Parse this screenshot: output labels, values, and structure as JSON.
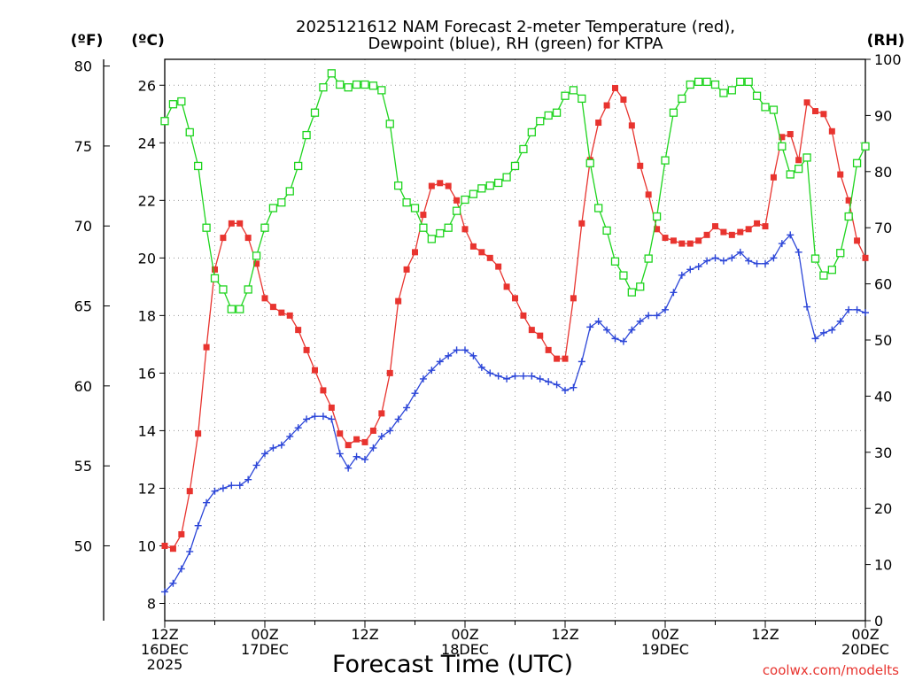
{
  "title_line1": "2025121612 NAM Forecast 2-meter Temperature (red),",
  "title_line2": "Dewpoint (blue), RH (green) for KTPA",
  "units": {
    "fahrenheit": "(ºF)",
    "celsius": "(ºC)",
    "rh": "(RH)"
  },
  "xlabel": "Forecast Time (UTC)",
  "credit": "coolwx.com/modelts",
  "colors": {
    "temperature": "#e8342f",
    "dewpoint": "#2c46d8",
    "rh": "#1ed41e"
  },
  "chart_data": {
    "type": "line",
    "x_unit": "forecast hour from 2025-12-16 12Z",
    "x": [
      0,
      1,
      2,
      3,
      4,
      5,
      6,
      7,
      8,
      9,
      10,
      11,
      12,
      13,
      14,
      15,
      16,
      17,
      18,
      19,
      20,
      21,
      22,
      23,
      24,
      25,
      26,
      27,
      28,
      29,
      30,
      31,
      32,
      33,
      34,
      35,
      36,
      37,
      38,
      39,
      40,
      41,
      42,
      43,
      44,
      45,
      46,
      47,
      48,
      49,
      50,
      51,
      52,
      53,
      54,
      55,
      56,
      57,
      58,
      59,
      60,
      61,
      62,
      63,
      64,
      65,
      66,
      67,
      68,
      69,
      70,
      71,
      72,
      73,
      74,
      75,
      76,
      77,
      78,
      79,
      80,
      81,
      82,
      83,
      84
    ],
    "xlim": [
      0,
      84
    ],
    "x_ticks": [
      {
        "hour": 0,
        "lines": [
          "12Z",
          "16DEC",
          "2025"
        ]
      },
      {
        "hour": 12,
        "lines": [
          "00Z",
          "17DEC"
        ]
      },
      {
        "hour": 24,
        "lines": [
          "12Z"
        ]
      },
      {
        "hour": 36,
        "lines": [
          "00Z",
          "18DEC"
        ]
      },
      {
        "hour": 48,
        "lines": [
          "12Z"
        ]
      },
      {
        "hour": 60,
        "lines": [
          "00Z",
          "19DEC"
        ]
      },
      {
        "hour": 72,
        "lines": [
          "12Z"
        ]
      },
      {
        "hour": 84,
        "lines": [
          "00Z",
          "20DEC"
        ]
      }
    ],
    "y_celsius": {
      "min": 7.4,
      "max": 26.9,
      "ticks": [
        8,
        10,
        12,
        14,
        16,
        18,
        20,
        22,
        24,
        26
      ]
    },
    "y_fahrenheit": {
      "ticks": [
        50,
        55,
        60,
        65,
        70,
        75,
        80
      ]
    },
    "y_rh": {
      "min": 0,
      "max": 100,
      "ticks": [
        0,
        10,
        20,
        30,
        40,
        50,
        60,
        70,
        80,
        90,
        100
      ]
    },
    "series": [
      {
        "name": "2-meter Temperature",
        "unit": "degC",
        "marker": "filled-square",
        "values": [
          10.0,
          9.9,
          10.4,
          11.9,
          13.9,
          16.9,
          19.6,
          20.7,
          21.2,
          21.2,
          20.7,
          19.8,
          18.6,
          18.3,
          18.1,
          18.0,
          17.5,
          16.8,
          16.1,
          15.4,
          14.8,
          13.9,
          13.5,
          13.7,
          13.6,
          14.0,
          14.6,
          16.0,
          18.5,
          19.6,
          20.2,
          21.5,
          22.5,
          22.6,
          22.5,
          22.0,
          21.0,
          20.4,
          20.2,
          20.0,
          19.7,
          19.0,
          18.6,
          18.0,
          17.5,
          17.3,
          16.8,
          16.5,
          16.5,
          18.6,
          21.2,
          23.4,
          24.7,
          25.3,
          25.9,
          25.5,
          24.6,
          23.2,
          22.2,
          21.0,
          20.7,
          20.6,
          20.5,
          20.5,
          20.6,
          20.8,
          21.1,
          20.9,
          20.8,
          20.9,
          21.0,
          21.2,
          21.1,
          22.8,
          24.2,
          24.3,
          23.4,
          25.4,
          25.1,
          25.0,
          24.4,
          22.9,
          22.0,
          20.6,
          20.0
        ]
      },
      {
        "name": "Dewpoint",
        "unit": "degC",
        "marker": "plus",
        "values": [
          8.4,
          8.7,
          9.2,
          9.8,
          10.7,
          11.5,
          11.9,
          12.0,
          12.1,
          12.1,
          12.3,
          12.8,
          13.2,
          13.4,
          13.5,
          13.8,
          14.1,
          14.4,
          14.5,
          14.5,
          14.4,
          13.2,
          12.7,
          13.1,
          13.0,
          13.4,
          13.8,
          14.0,
          14.4,
          14.8,
          15.3,
          15.8,
          16.1,
          16.4,
          16.6,
          16.8,
          16.8,
          16.6,
          16.2,
          16.0,
          15.9,
          15.8,
          15.9,
          15.9,
          15.9,
          15.8,
          15.7,
          15.6,
          15.4,
          15.5,
          16.4,
          17.6,
          17.8,
          17.5,
          17.2,
          17.1,
          17.5,
          17.8,
          18.0,
          18.0,
          18.2,
          18.8,
          19.4,
          19.6,
          19.7,
          19.9,
          20.0,
          19.9,
          20.0,
          20.2,
          19.9,
          19.8,
          19.8,
          20.0,
          20.5,
          20.8,
          20.2,
          18.3,
          17.2,
          17.4,
          17.5,
          17.8,
          18.2,
          18.2,
          18.1
        ]
      },
      {
        "name": "Relative Humidity",
        "unit": "percent",
        "marker": "open-square",
        "values": [
          89,
          92,
          92.5,
          87,
          81,
          70,
          61,
          59,
          55.5,
          55.5,
          59,
          65,
          70,
          73.5,
          74.5,
          76.5,
          81,
          86.5,
          90.5,
          95,
          97.5,
          95.5,
          95,
          95.5,
          95.5,
          95.3,
          94.5,
          88.5,
          77.5,
          74.5,
          73.5,
          70,
          68,
          69,
          70,
          73,
          75,
          76,
          77,
          77.5,
          78,
          79,
          81,
          84,
          87,
          89,
          90,
          90.5,
          93.5,
          94.5,
          93,
          81.5,
          73.5,
          69.5,
          64,
          61.5,
          58.5,
          59.5,
          64.5,
          72,
          82,
          90.5,
          93,
          95.5,
          96,
          96,
          95.5,
          94,
          94.5,
          96,
          96,
          93.5,
          91.5,
          91,
          84.5,
          79.5,
          80.5,
          82.5,
          64.5,
          61.5,
          62.5,
          65.5,
          72,
          81.5,
          84.5
        ]
      }
    ]
  }
}
